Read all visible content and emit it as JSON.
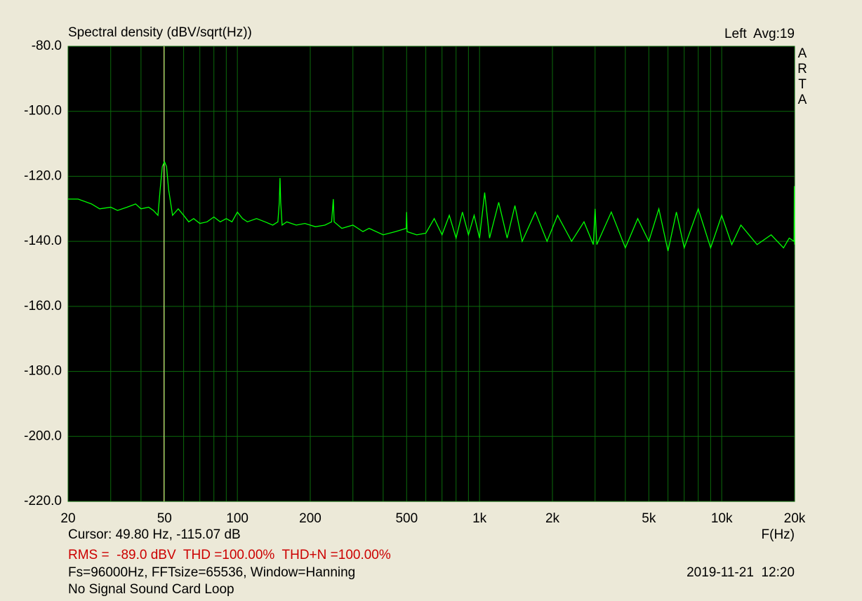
{
  "chart_data": {
    "type": "line",
    "title": "Spectral density (dBV/sqrt(Hz))",
    "channel": "Left  Avg:19",
    "brand": "ARTA",
    "x_label": "F(Hz)",
    "cursor": {
      "label": "Cursor: 49.80 Hz, -115.07 dB",
      "x": 49.8,
      "color": "#ffff99"
    },
    "measurements": {
      "text": "RMS =  -89.0 dBV  THD =100.00%  THD+N =100.00%",
      "color": "#cc0000"
    },
    "settings": "Fs=96000Hz, FFTsize=65536, Window=Hanning",
    "date": "2019-11-21  12:20",
    "note": "No Signal Sound Card Loop",
    "xscale": "log",
    "grid": true,
    "background": "#000000",
    "grid_color": "#0b6b0b",
    "xlim": [
      20,
      20000
    ],
    "ylim": [
      -220,
      -80
    ],
    "xticks": [
      20,
      50,
      100,
      200,
      500,
      {
        "value": 1000,
        "label": "1k"
      },
      {
        "value": 2000,
        "label": "2k"
      },
      {
        "value": 5000,
        "label": "5k"
      },
      {
        "value": 10000,
        "label": "10k"
      },
      {
        "value": 20000,
        "label": "20k"
      }
    ],
    "xminorticks": [
      30,
      40,
      60,
      70,
      80,
      90,
      300,
      400,
      600,
      700,
      800,
      900,
      3000,
      4000,
      6000,
      7000,
      8000,
      9000
    ],
    "yticks": [
      {
        "value": -80,
        "label": "-80.0"
      },
      {
        "value": -100,
        "label": "-100.0"
      },
      {
        "value": -120,
        "label": "-120.0"
      },
      {
        "value": -140,
        "label": "-140.0"
      },
      {
        "value": -160,
        "label": "-160.0"
      },
      {
        "value": -180,
        "label": "-180.0"
      },
      {
        "value": -200,
        "label": "-200.0"
      },
      {
        "value": -220,
        "label": "-220.0"
      }
    ],
    "x": [
      20,
      22,
      25,
      27,
      30,
      32,
      35,
      38,
      40,
      43,
      45,
      47,
      48,
      49,
      50,
      51,
      52,
      54,
      57,
      60,
      63,
      66,
      70,
      75,
      80,
      85,
      90,
      95,
      100,
      105,
      110,
      120,
      130,
      140,
      147,
      149,
      150,
      151,
      153,
      160,
      175,
      190,
      210,
      230,
      245,
      249,
      251,
      270,
      300,
      330,
      350,
      400,
      450,
      498,
      500,
      502,
      550,
      600,
      650,
      700,
      750,
      800,
      850,
      900,
      950,
      1000,
      1050,
      1100,
      1200,
      1300,
      1400,
      1500,
      1700,
      1900,
      2100,
      2400,
      2700,
      2950,
      3000,
      3050,
      3500,
      4000,
      4500,
      5000,
      5500,
      6000,
      6500,
      7000,
      8000,
      9000,
      10000,
      11000,
      12000,
      14000,
      16000,
      18000,
      19000,
      19900,
      19950,
      20000
    ],
    "series": [
      {
        "color": "#00ff00",
        "values": [
          -127,
          -127,
          -128.5,
          -130,
          -129.5,
          -130.5,
          -129.5,
          -128.5,
          -130,
          -129.5,
          -130.5,
          -132,
          -124,
          -117,
          -115.5,
          -117,
          -124,
          -132,
          -130,
          -132,
          -134,
          -133,
          -134.5,
          -134,
          -132.5,
          -134,
          -133,
          -134,
          -131,
          -133,
          -134,
          -133,
          -134,
          -135,
          -134,
          -128,
          -120.5,
          -128,
          -135,
          -134,
          -135,
          -134.5,
          -135.5,
          -135,
          -134,
          -127,
          -134,
          -136,
          -135,
          -137,
          -136,
          -138,
          -137,
          -136,
          -131,
          -137,
          -138,
          -137.5,
          -133,
          -138,
          -132,
          -139,
          -131,
          -138,
          -132,
          -139,
          -125,
          -139,
          -128,
          -139,
          -129,
          -140,
          -131,
          -140,
          -132,
          -140,
          -134,
          -141,
          -130,
          -141,
          -131,
          -142,
          -133,
          -140,
          -130,
          -143,
          -131,
          -142,
          -130,
          -142,
          -132,
          -141,
          -135,
          -141,
          -138,
          -142,
          -139,
          -140,
          -123,
          -141
        ]
      }
    ]
  }
}
